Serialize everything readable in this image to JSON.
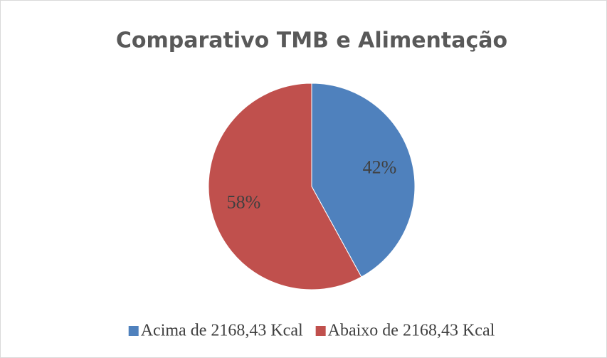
{
  "chart_data": {
    "type": "pie",
    "title": "Comparativo TMB e Alimentação",
    "categories": [
      "Acima de 2168,43 Kcal",
      "Abaixo de 2168,43 Kcal"
    ],
    "values": [
      42,
      58
    ],
    "value_labels": [
      "42%",
      "58%"
    ],
    "colors": [
      "#4f81bd",
      "#c0504d"
    ],
    "legend": "bottom"
  }
}
